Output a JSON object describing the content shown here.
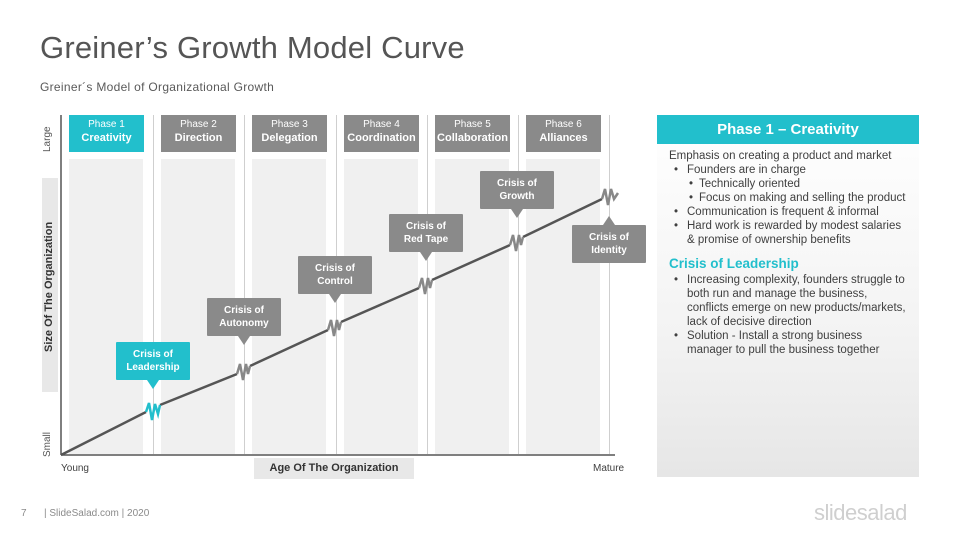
{
  "title": "Greiner’s Growth Model Curve",
  "subtitle": "Greiner´s  Model  of Organizational  Growth",
  "y_axis": {
    "top": "Large",
    "bottom": "Small",
    "title": "Size Of The Organization"
  },
  "x_axis": {
    "left": "Young",
    "right": "Mature",
    "title": "Age Of The Organization"
  },
  "phases": [
    {
      "label": "Phase 1",
      "name": "Creativity",
      "active": true
    },
    {
      "label": "Phase 2",
      "name": "Direction",
      "active": false
    },
    {
      "label": "Phase 3",
      "name": "Delegation",
      "active": false
    },
    {
      "label": "Phase 4",
      "name": "Coordination",
      "active": false
    },
    {
      "label": "Phase 5",
      "name": "Collaboration",
      "active": false
    },
    {
      "label": "Phase 6",
      "name": "Alliances",
      "active": false
    }
  ],
  "crises": [
    {
      "line1": "Crisis of",
      "line2": "Leadership",
      "active": true
    },
    {
      "line1": "Crisis of",
      "line2": "Autonomy",
      "active": false
    },
    {
      "line1": "Crisis of",
      "line2": "Control",
      "active": false
    },
    {
      "line1": "Crisis of",
      "line2": "Red Tape",
      "active": false
    },
    {
      "line1": "Crisis of",
      "line2": "Growth",
      "active": false
    },
    {
      "line1": "Crisis of",
      "line2": "Identity",
      "active": false
    }
  ],
  "panel": {
    "header": "Phase 1 – Creativity",
    "lead": "Emphasis on creating a product and market",
    "bullets": [
      "Founders are in charge",
      "Communication is frequent & informal",
      "Hard work is rewarded by modest salaries & promise of ownership benefits"
    ],
    "sub_bullets": [
      "Technically oriented",
      "Focus on making and selling the product"
    ],
    "crisis_title": "Crisis of Leadership",
    "crisis_bullets": [
      "Increasing complexity, founders struggle to both run and manage the business, conflicts emerge on new products/markets, lack of decisive direction",
      "Solution - Install a strong business manager to pull the business together"
    ]
  },
  "footer": {
    "page": "7",
    "text": "| SlideSalad.com | 2020",
    "brand": "slidesalad"
  },
  "colors": {
    "accent": "#22bfcc",
    "gray_box": "#8a8a8a",
    "curve": "#555555"
  }
}
